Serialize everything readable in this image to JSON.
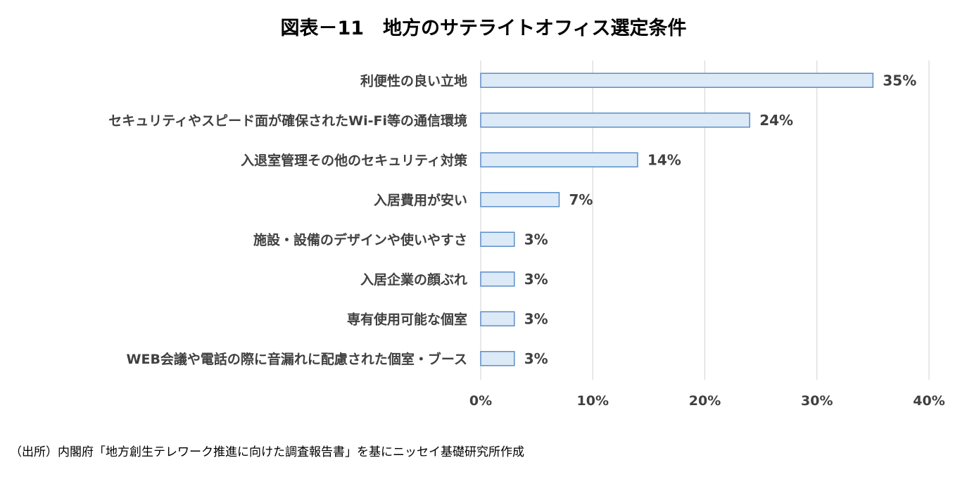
{
  "chart_data": {
    "type": "bar",
    "orientation": "horizontal",
    "title": "図表－11　地方のサテライトオフィス選定条件",
    "categories": [
      "利便性の良い立地",
      "セキュリティやスピード面が確保されたWi-Fi等の通信環境",
      "入退室管理その他のセキュリティ対策",
      "入居費用が安い",
      "施設・設備のデザインや使いやすさ",
      "入居企業の顔ぶれ",
      "専有使用可能な個室",
      "WEB会議や電話の際に音漏れに配慮された個室・ブース"
    ],
    "values": [
      35,
      24,
      14,
      7,
      3,
      3,
      3,
      3
    ],
    "value_labels": [
      "35%",
      "24%",
      "14%",
      "7%",
      "3%",
      "3%",
      "3%",
      "3%"
    ],
    "xlim": [
      0,
      40
    ],
    "xticks": [
      "0%",
      "10%",
      "20%",
      "30%",
      "40%"
    ],
    "grid": true,
    "legend": "none",
    "colors": {
      "bar_fill": "#dce9f6",
      "bar_stroke": "#5b8ec9",
      "grid": "#d9d9d9",
      "text": "#404040"
    }
  },
  "source": "（出所）内閣府「地方創生テレワーク推進に向けた調査報告書」を基にニッセイ基礎研究所作成"
}
